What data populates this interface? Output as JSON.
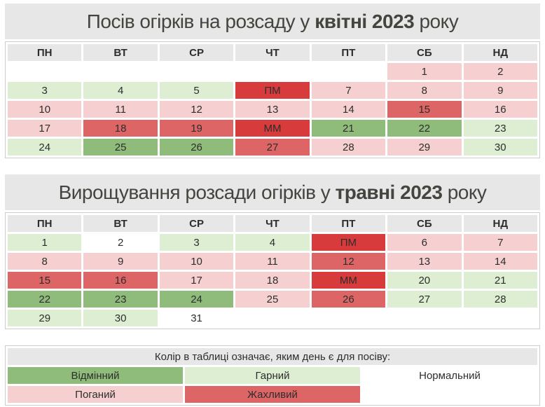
{
  "titles": {
    "april": {
      "prefix": "Посів огірків на розсаду у ",
      "highlight": "квітні 2023",
      "suffix": " року"
    },
    "may": {
      "prefix": "Вирощування розсади огірків у ",
      "highlight": "травні 2023",
      "suffix": " року"
    }
  },
  "weekdays": [
    "ПН",
    "ВТ",
    "СР",
    "ЧТ",
    "ПТ",
    "СБ",
    "НД"
  ],
  "calendars": {
    "april": [
      [
        {
          "t": "",
          "k": "empty"
        },
        {
          "t": "",
          "k": "empty"
        },
        {
          "t": "",
          "k": "empty"
        },
        {
          "t": "",
          "k": "empty"
        },
        {
          "t": "",
          "k": "empty"
        },
        {
          "t": "1",
          "k": "bad"
        },
        {
          "t": "2",
          "k": "bad"
        }
      ],
      [
        {
          "t": "3",
          "k": "good"
        },
        {
          "t": "4",
          "k": "good"
        },
        {
          "t": "5",
          "k": "good"
        },
        {
          "t": "ПМ",
          "k": "moon"
        },
        {
          "t": "7",
          "k": "bad"
        },
        {
          "t": "8",
          "k": "bad"
        },
        {
          "t": "9",
          "k": "bad"
        }
      ],
      [
        {
          "t": "10",
          "k": "bad"
        },
        {
          "t": "11",
          "k": "bad"
        },
        {
          "t": "12",
          "k": "bad"
        },
        {
          "t": "13",
          "k": "bad"
        },
        {
          "t": "14",
          "k": "bad"
        },
        {
          "t": "15",
          "k": "terrible"
        },
        {
          "t": "16",
          "k": "bad"
        }
      ],
      [
        {
          "t": "17",
          "k": "bad"
        },
        {
          "t": "18",
          "k": "terrible"
        },
        {
          "t": "19",
          "k": "terrible"
        },
        {
          "t": "ММ",
          "k": "moon"
        },
        {
          "t": "21",
          "k": "excellent"
        },
        {
          "t": "22",
          "k": "excellent"
        },
        {
          "t": "23",
          "k": "good"
        }
      ],
      [
        {
          "t": "24",
          "k": "good"
        },
        {
          "t": "25",
          "k": "excellent"
        },
        {
          "t": "26",
          "k": "excellent"
        },
        {
          "t": "27",
          "k": "terrible"
        },
        {
          "t": "28",
          "k": "bad"
        },
        {
          "t": "29",
          "k": "bad"
        },
        {
          "t": "30",
          "k": "good"
        }
      ]
    ],
    "may": [
      [
        {
          "t": "1",
          "k": "good"
        },
        {
          "t": "2",
          "k": "normal"
        },
        {
          "t": "3",
          "k": "good"
        },
        {
          "t": "4",
          "k": "good"
        },
        {
          "t": "ПМ",
          "k": "moon"
        },
        {
          "t": "6",
          "k": "bad"
        },
        {
          "t": "7",
          "k": "bad"
        }
      ],
      [
        {
          "t": "8",
          "k": "bad"
        },
        {
          "t": "9",
          "k": "bad"
        },
        {
          "t": "10",
          "k": "bad"
        },
        {
          "t": "11",
          "k": "bad"
        },
        {
          "t": "12",
          "k": "terrible"
        },
        {
          "t": "13",
          "k": "bad"
        },
        {
          "t": "14",
          "k": "bad"
        }
      ],
      [
        {
          "t": "15",
          "k": "terrible"
        },
        {
          "t": "16",
          "k": "terrible"
        },
        {
          "t": "17",
          "k": "bad"
        },
        {
          "t": "18",
          "k": "bad"
        },
        {
          "t": "ММ",
          "k": "moon"
        },
        {
          "t": "20",
          "k": "good"
        },
        {
          "t": "21",
          "k": "good"
        }
      ],
      [
        {
          "t": "22",
          "k": "excellent"
        },
        {
          "t": "23",
          "k": "excellent"
        },
        {
          "t": "24",
          "k": "excellent"
        },
        {
          "t": "25",
          "k": "bad"
        },
        {
          "t": "26",
          "k": "terrible"
        },
        {
          "t": "27",
          "k": "good"
        },
        {
          "t": "28",
          "k": "good"
        }
      ],
      [
        {
          "t": "29",
          "k": "good"
        },
        {
          "t": "30",
          "k": "good"
        },
        {
          "t": "31",
          "k": "normal"
        },
        {
          "t": "",
          "k": "empty"
        },
        {
          "t": "",
          "k": "empty"
        },
        {
          "t": "",
          "k": "empty"
        },
        {
          "t": "",
          "k": "empty"
        }
      ]
    ]
  },
  "legend": {
    "title": "Колір в таблиці означає, яким день є для посіву:",
    "rows": [
      [
        {
          "t": "Відмінний",
          "k": "excellent"
        },
        {
          "t": "Гарний",
          "k": "good"
        },
        {
          "t": "Нормальний",
          "k": "normal"
        }
      ],
      [
        {
          "t": "Поганий",
          "k": "bad"
        },
        {
          "t": "Жахливий",
          "k": "terrible"
        },
        {
          "t": "",
          "k": "empty"
        }
      ]
    ]
  },
  "colors": {
    "excellent": "#8fbc7b",
    "good": "#ddeed3",
    "normal": "#ffffff",
    "bad": "#f6d0d0",
    "terrible": "#dd6565",
    "moon": "#d83b3b",
    "header_bg": "#e7e7e7",
    "border": "#cccccc"
  }
}
